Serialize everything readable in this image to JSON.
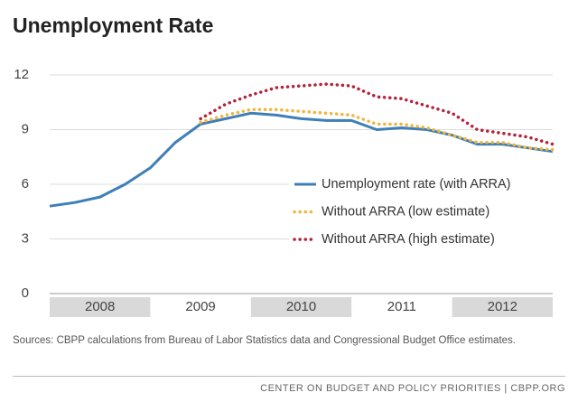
{
  "chart_data": {
    "type": "line",
    "title": "Unemployment Rate",
    "x": [
      2008,
      2008.25,
      2008.5,
      2008.75,
      2009,
      2009.25,
      2009.5,
      2009.75,
      2010,
      2010.25,
      2010.5,
      2010.75,
      2011,
      2011.25,
      2011.5,
      2011.75,
      2012,
      2012.25,
      2012.5,
      2012.75,
      2013
    ],
    "xlim": [
      2008,
      2013
    ],
    "xticks": [
      2008,
      2009,
      2010,
      2011,
      2012
    ],
    "ylim": [
      0,
      12
    ],
    "yticks": [
      0,
      3,
      6,
      9,
      12
    ],
    "grid": true,
    "series": [
      {
        "name": "Unemployment rate (with ARRA)",
        "color": "#3f7fb8",
        "style": "solid",
        "values": [
          4.8,
          5.0,
          5.3,
          6.0,
          6.9,
          8.3,
          9.3,
          9.6,
          9.9,
          9.8,
          9.6,
          9.5,
          9.5,
          9.0,
          9.1,
          9.0,
          8.7,
          8.2,
          8.2,
          8.0,
          7.8
        ]
      },
      {
        "name": "Without ARRA (low estimate)",
        "color": "#f2b53c",
        "style": "dotted",
        "values": [
          null,
          null,
          null,
          null,
          null,
          null,
          9.4,
          9.8,
          10.1,
          10.1,
          10.0,
          9.9,
          9.8,
          9.3,
          9.3,
          9.1,
          8.7,
          8.3,
          8.3,
          8.0,
          7.9
        ]
      },
      {
        "name": "Without ARRA (high estimate)",
        "color": "#b3233b",
        "style": "dotted",
        "values": [
          null,
          null,
          null,
          null,
          null,
          null,
          9.6,
          10.4,
          10.9,
          11.3,
          11.4,
          11.5,
          11.4,
          10.8,
          10.7,
          10.3,
          9.9,
          9.0,
          8.8,
          8.6,
          8.2
        ]
      }
    ],
    "source": "Sources: CBPP calculations from Bureau of Labor Statistics data and Congressional Budget Office estimates.",
    "footer": "CENTER ON BUDGET AND POLICY PRIORITIES | CBPP.ORG"
  }
}
